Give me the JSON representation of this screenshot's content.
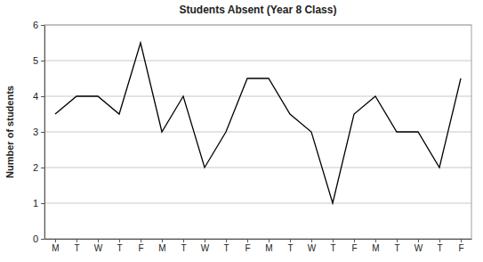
{
  "chart_data": {
    "type": "line",
    "title": "Students Absent (Year 8 Class)",
    "y_label": "Number of students",
    "categories": [
      "M",
      "T",
      "W",
      "T",
      "F",
      "M",
      "T",
      "W",
      "T",
      "F",
      "M",
      "T",
      "W",
      "T",
      "F",
      "M",
      "T",
      "W",
      "T",
      "F"
    ],
    "values": [
      3.5,
      4,
      4,
      3.5,
      5.5,
      3,
      4,
      2,
      3,
      4.5,
      4.5,
      3.5,
      3,
      1,
      3.5,
      4,
      3,
      3,
      2,
      4.5
    ],
    "color": "#000000",
    "ylim": [
      0,
      6
    ],
    "yticks": [
      0,
      1,
      2,
      3,
      4,
      5,
      6
    ],
    "grid": true
  }
}
